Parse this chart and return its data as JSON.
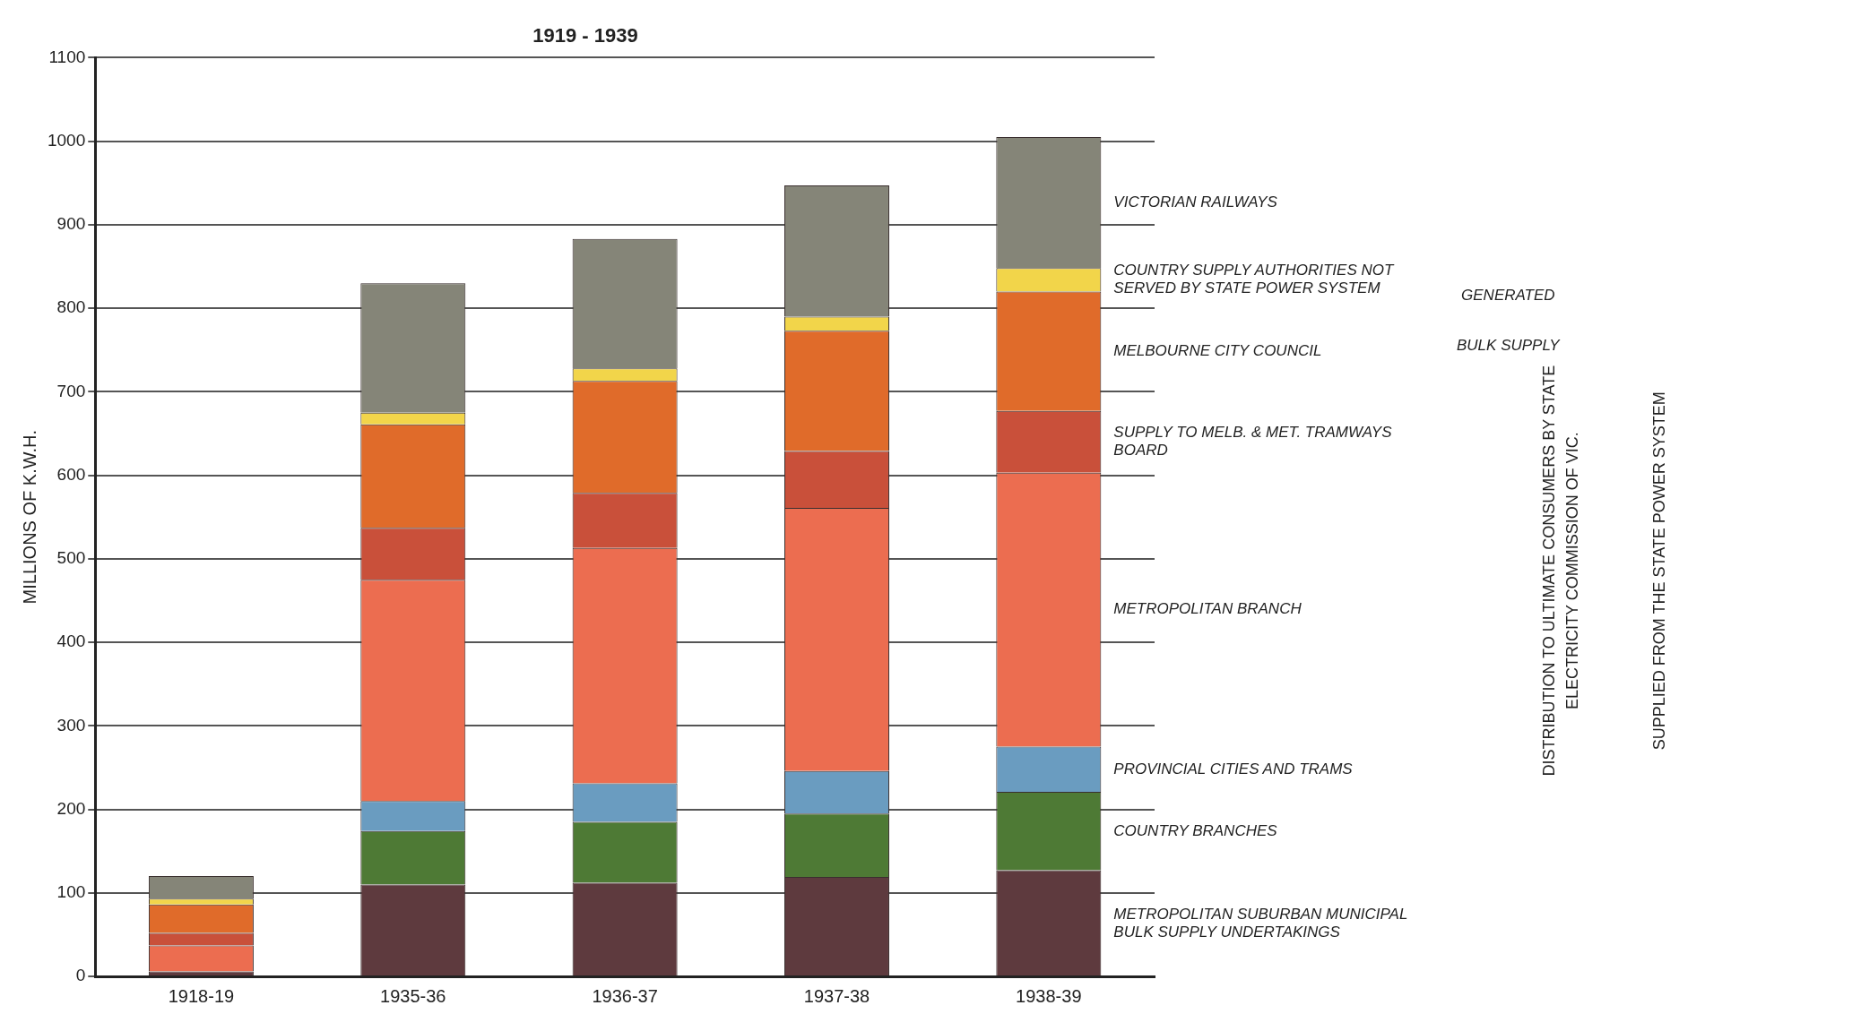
{
  "chart_data": {
    "type": "bar",
    "title": "1919 - 1939",
    "ylabel": "MILLIONS OF K.W.H.",
    "stacked": true,
    "categories": [
      "1918-19",
      "1935-36",
      "1936-37",
      "1937-38",
      "1938-39"
    ],
    "series": [
      {
        "name": "METROPOLITAN SUBURBAN MUNICIPAL BULK SUPPLY UNDERTAKINGS",
        "color": "#5e3a3e",
        "values": [
          6,
          110,
          112,
          119,
          127
        ]
      },
      {
        "name": "COUNTRY BRANCHES",
        "color": "#4e7a35",
        "values": [
          0,
          64,
          73,
          76,
          94
        ]
      },
      {
        "name": "PROVINCIAL CITIES AND TRAMS",
        "color": "#6a9cc0",
        "values": [
          0,
          36,
          46,
          51,
          54
        ]
      },
      {
        "name": "METROPOLITAN BRANCH",
        "color": "#ec6d50",
        "values": [
          31,
          265,
          282,
          315,
          328
        ]
      },
      {
        "name": "SUPPLY TO MELB. & MET. TRAMWAYS BOARD",
        "color": "#c9503a",
        "values": [
          15,
          62,
          66,
          68,
          74
        ]
      },
      {
        "name": "MELBOURNE CITY COUNCIL",
        "color": "#e06b2a",
        "values": [
          34,
          124,
          134,
          144,
          143
        ]
      },
      {
        "name": "COUNTRY SUPPLY AUTHORITIES NOT SERVED BY STATE POWER SYSTEM",
        "color": "#f2d54a",
        "values": [
          7,
          14,
          15,
          17,
          28
        ]
      },
      {
        "name": "VICTORIAN RAILWAYS",
        "color": "#858578",
        "values": [
          27,
          155,
          155,
          157,
          157
        ]
      }
    ],
    "ylim": [
      0,
      1100
    ],
    "yticks": [
      0,
      100,
      200,
      300,
      400,
      500,
      600,
      700,
      800,
      900,
      1000,
      1100
    ],
    "grid": "y",
    "legend": false,
    "annotations": [
      "GENERATED",
      "BULK SUPPLY",
      "DISTRIBUTION TO ULTIMATE CONSUMERS BY STATE ELECTRICITY COMMISSION OF VIC.",
      "SUPPLIED FROM THE STATE POWER SYSTEM"
    ]
  }
}
